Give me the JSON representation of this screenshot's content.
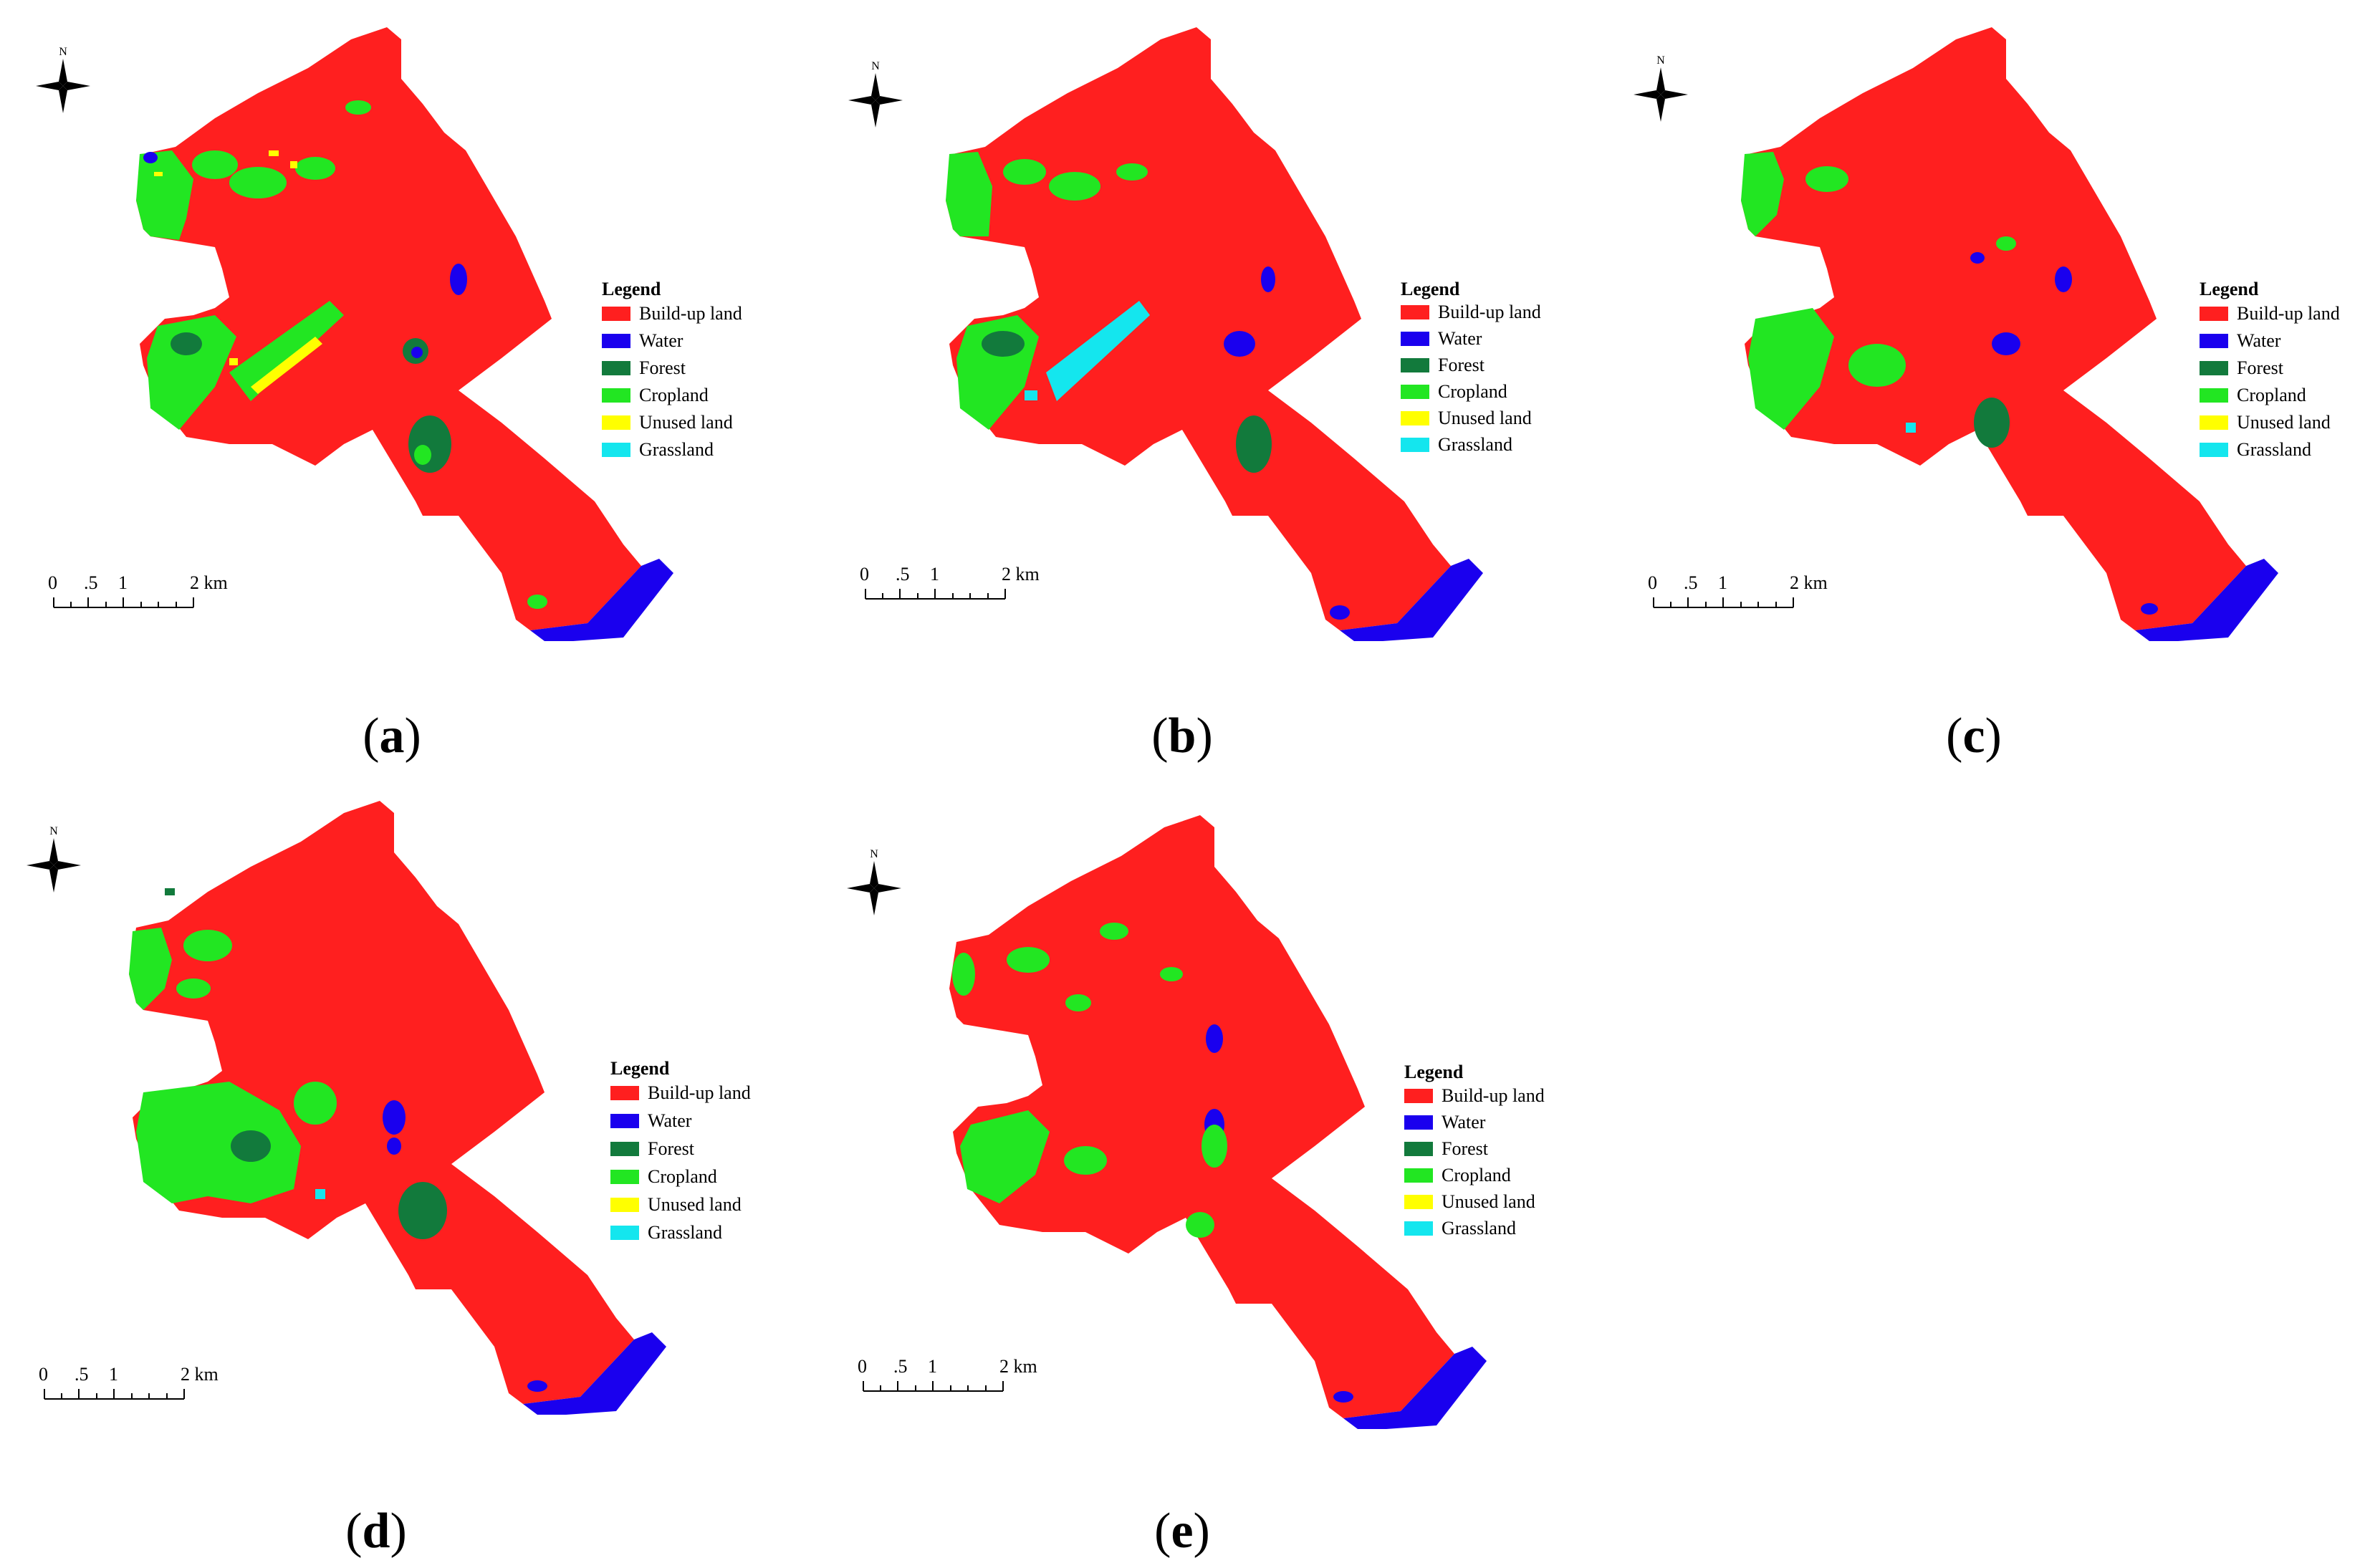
{
  "legend": {
    "title": "Legend",
    "items": [
      {
        "label": "Build-up land",
        "color": "#ff1f1f"
      },
      {
        "label": "Water",
        "color": "#1a00ee"
      },
      {
        "label": "Forest",
        "color": "#127a3c"
      },
      {
        "label": "Cropland",
        "color": "#22e622"
      },
      {
        "label": "Unused land",
        "color": "#ffff00"
      },
      {
        "label": "Grassland",
        "color": "#14e6ee"
      }
    ]
  },
  "north_arrow": {
    "label": "N"
  },
  "scale_bar": {
    "ticks": [
      "0",
      ".5",
      "1",
      "2 km"
    ]
  },
  "panels": [
    {
      "id": "a",
      "label_open": "(",
      "letter": "a",
      "label_close": ")"
    },
    {
      "id": "b",
      "label_open": "(",
      "letter": "b",
      "label_close": ")"
    },
    {
      "id": "c",
      "label_open": "(",
      "letter": "c",
      "label_close": ")"
    },
    {
      "id": "d",
      "label_open": "(",
      "letter": "d",
      "label_close": ")"
    },
    {
      "id": "e",
      "label_open": "(",
      "letter": "e",
      "label_close": ")"
    }
  ]
}
